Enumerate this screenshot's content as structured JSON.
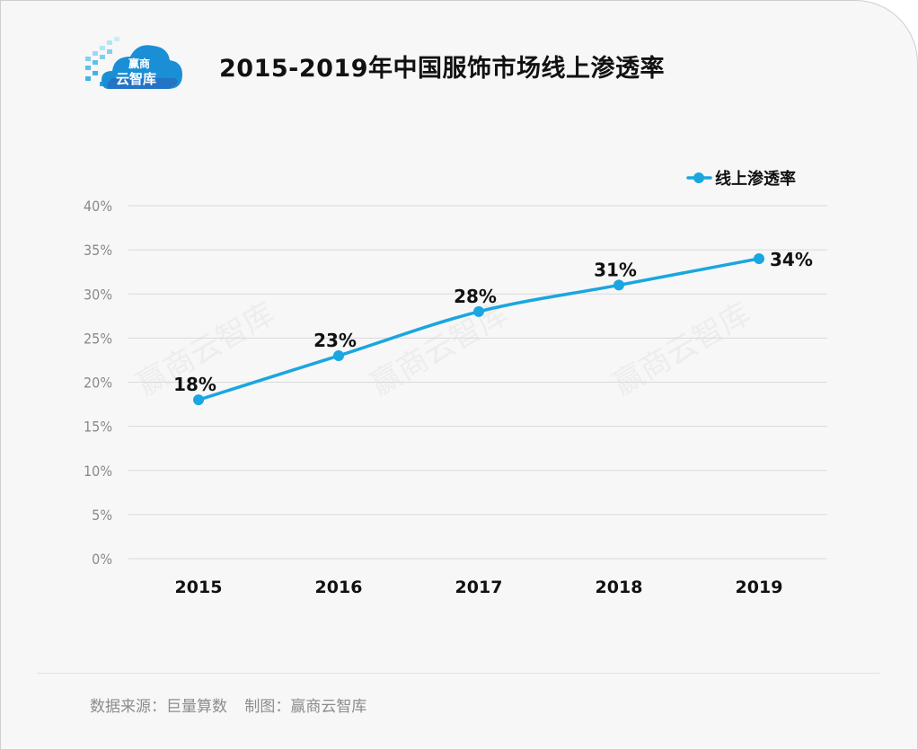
{
  "header": {
    "title": "2015-2019年中国服饰市场线上渗透率",
    "logo_text_top": "赢商",
    "logo_text_bottom": "云智库"
  },
  "chart_data": {
    "type": "line",
    "title": "2015-2019年中国服饰市场线上渗透率",
    "categories": [
      "2015",
      "2016",
      "2017",
      "2018",
      "2019"
    ],
    "series": [
      {
        "name": "线上渗透率",
        "values": [
          18,
          23,
          28,
          31,
          34
        ],
        "labels": [
          "18%",
          "23%",
          "28%",
          "31%",
          "34%"
        ],
        "color": "#1aa6e0"
      }
    ],
    "yticks": [
      "0%",
      "5%",
      "10%",
      "15%",
      "20%",
      "25%",
      "30%",
      "35%",
      "40%"
    ],
    "ylim": [
      0,
      40
    ],
    "grid": true,
    "legend_position": "top-right",
    "watermark": "赢商云智库"
  },
  "footer": {
    "source": "数据来源：巨量算数",
    "maker": "制图：赢商云智库"
  },
  "colors": {
    "accent": "#1aa6e0",
    "grid": "#d9d9d9",
    "axis_text": "#8a8a8a",
    "background": "#f7f7f7"
  }
}
